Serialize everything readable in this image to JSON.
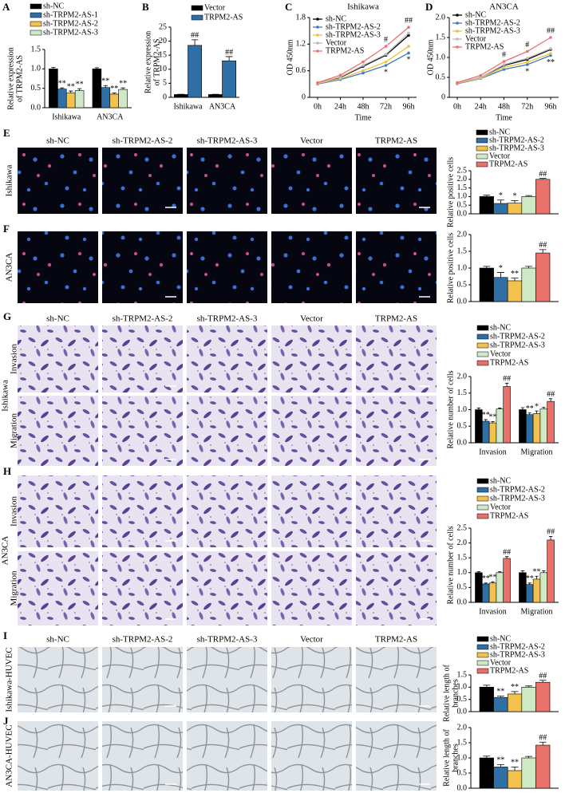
{
  "chart_data": [
    {
      "type": "bar",
      "panel": "A",
      "ylabel": [
        "Relative expression",
        "of TRPM2-AS"
      ],
      "categories": [
        "Ishikawa",
        "AN3CA"
      ],
      "ylim": [
        0,
        1.5
      ],
      "yticks": [
        {
          "value": 0,
          "label": "0.0"
        },
        0.5,
        {
          "value": 1,
          "label": "1.0"
        },
        1.5
      ],
      "legend": true,
      "series": [
        {
          "name": "sh-NC",
          "color": "#000000",
          "values": [
            1,
            1
          ],
          "errors": [
            0.04,
            0.03
          ]
        },
        {
          "name": "sh-TRPM2-AS-1",
          "color": "#2f6fa6",
          "values": [
            0.48,
            0.52
          ],
          "errors": [
            0.03,
            0.05
          ],
          "annotations": [
            "**",
            "**"
          ]
        },
        {
          "name": "sh-TRPM2-AS-2",
          "color": "#f2c14e",
          "values": [
            0.38,
            0.35
          ],
          "errors": [
            0.05,
            0.03
          ],
          "annotations": [
            "**",
            "**"
          ]
        },
        {
          "name": "sh-TRPM2-AS-3",
          "color": "#cfe8c6",
          "values": [
            0.44,
            0.47
          ],
          "errors": [
            0.05,
            0.04
          ],
          "annotations": [
            "**",
            "**"
          ]
        }
      ]
    },
    {
      "type": "bar",
      "panel": "B",
      "ylabel": [
        "Relative expression",
        "of TRPM2-AS"
      ],
      "categories": [
        "Ishikawa",
        "AN3CA"
      ],
      "ylim": [
        0,
        25
      ],
      "yticks": [
        0,
        5,
        10,
        15,
        20,
        25
      ],
      "legend": true,
      "series": [
        {
          "name": "Vector",
          "color": "#000000",
          "values": [
            1,
            1
          ],
          "errors": [
            0.1,
            0.1
          ]
        },
        {
          "name": "TRPM2-AS",
          "color": "#2f6fa6",
          "values": [
            18.5,
            13
          ],
          "errors": [
            2,
            1.5
          ],
          "annotations": [
            "##",
            "##"
          ]
        }
      ]
    },
    {
      "type": "line",
      "panel": "C",
      "title": "Ishikawa",
      "xlabel": "Time",
      "ylabel": [
        "OD 450nm"
      ],
      "categories": [
        "0h",
        "24h",
        "48h",
        "72h",
        "96h"
      ],
      "ylim": [
        0,
        1.8
      ],
      "yticks": [
        0,
        0.6,
        1.2,
        1.8
      ],
      "legend": true,
      "series": [
        {
          "name": "sh-NC",
          "color": "#000000",
          "values": [
            0.32,
            0.45,
            0.7,
            0.95,
            1.4
          ]
        },
        {
          "name": "sh-TRPM2-AS-2",
          "color": "#3a7cc0",
          "values": [
            0.3,
            0.4,
            0.55,
            0.72,
            1.0
          ],
          "annotations": [
            null,
            null,
            null,
            "*",
            "*"
          ],
          "annotation_side": "below"
        },
        {
          "name": "sh-TRPM2-AS-3",
          "color": "#f0c040",
          "values": [
            0.31,
            0.42,
            0.6,
            0.8,
            1.15
          ]
        },
        {
          "name": "Vector",
          "color": "#bbbbbb",
          "values": [
            0.32,
            0.46,
            0.72,
            0.97,
            1.45
          ]
        },
        {
          "name": "TRPM2-AS",
          "color": "#f07070",
          "values": [
            0.33,
            0.5,
            0.8,
            1.15,
            1.58
          ],
          "annotations": [
            null,
            null,
            null,
            "#",
            "##"
          ]
        }
      ]
    },
    {
      "type": "line",
      "panel": "D",
      "title": "AN3CA",
      "xlabel": "Time",
      "ylabel": [
        "OD 450nm"
      ],
      "categories": [
        "0h",
        "24h",
        "48h",
        "72h",
        "96h"
      ],
      "ylim": [
        0,
        2
      ],
      "yticks": [
        0,
        0.5,
        {
          "value": 1,
          "label": "1.0"
        },
        1.5,
        {
          "value": 2,
          "label": "2.0"
        }
      ],
      "legend": true,
      "series": [
        {
          "name": "sh-NC",
          "color": "#000000",
          "values": [
            0.35,
            0.5,
            0.8,
            0.95,
            1.2
          ]
        },
        {
          "name": "sh-TRPM2-AS-2",
          "color": "#3a7cc0",
          "values": [
            0.34,
            0.47,
            0.7,
            0.82,
            1.05
          ],
          "annotations": [
            null,
            null,
            null,
            "*",
            "**"
          ],
          "annotation_side": "below"
        },
        {
          "name": "sh-TRPM2-AS-3",
          "color": "#f0c040",
          "values": [
            0.35,
            0.48,
            0.75,
            0.88,
            1.1
          ]
        },
        {
          "name": "Vector",
          "color": "#bbbbbb",
          "values": [
            0.36,
            0.5,
            0.82,
            0.98,
            1.22
          ]
        },
        {
          "name": "TRPM2-AS",
          "color": "#f07070",
          "values": [
            0.37,
            0.55,
            0.9,
            1.15,
            1.5
          ],
          "annotations": [
            null,
            null,
            "#",
            "#",
            "##"
          ]
        }
      ]
    },
    {
      "type": "bar",
      "ylabel": [
        "Relative positive cells"
      ],
      "categories": [
        null
      ],
      "ylim": [
        0,
        2.5
      ],
      "yticks": [
        {
          "value": 0,
          "label": "0.0"
        },
        0.5,
        {
          "value": 1,
          "label": "1.0"
        },
        1.5,
        {
          "value": 2,
          "label": "2.0"
        },
        2.5
      ],
      "legend": true,
      "series": [
        {
          "name": "sh-NC",
          "color": "#000000",
          "values": [
            1
          ],
          "errors": [
            0.08
          ]
        },
        {
          "name": "sh-TRPM2-AS-2",
          "color": "#2f6fa6",
          "values": [
            0.6
          ],
          "errors": [
            0.2
          ],
          "annotations": [
            "*"
          ]
        },
        {
          "name": "sh-TRPM2-AS-3",
          "color": "#f2c14e",
          "values": [
            0.62
          ],
          "errors": [
            0.15
          ],
          "annotations": [
            "*"
          ]
        },
        {
          "name": "Vector",
          "color": "#cfe8c6",
          "values": [
            1
          ],
          "errors": [
            0.06
          ]
        },
        {
          "name": "TRPM2-AS",
          "color": "#e8716b",
          "values": [
            2
          ],
          "errors": [
            0.06
          ],
          "annotations": [
            "##"
          ]
        }
      ]
    },
    {
      "type": "bar",
      "ylabel": [
        "Relative positive cells"
      ],
      "categories": [
        null
      ],
      "ylim": [
        0,
        2
      ],
      "yticks": [
        {
          "value": 0,
          "label": "0.0"
        },
        0.5,
        {
          "value": 1,
          "label": "1.0"
        },
        1.5,
        {
          "value": 2,
          "label": "2.0"
        }
      ],
      "legend": false,
      "series": [
        {
          "color": "#000000",
          "values": [
            1
          ],
          "errors": [
            0.05
          ]
        },
        {
          "color": "#2f6fa6",
          "values": [
            0.72
          ],
          "errors": [
            0.15
          ],
          "annotations": [
            "*"
          ]
        },
        {
          "color": "#f2c14e",
          "values": [
            0.62
          ],
          "errors": [
            0.08
          ],
          "annotations": [
            "**"
          ]
        },
        {
          "color": "#cfe8c6",
          "values": [
            1
          ],
          "errors": [
            0.05
          ]
        },
        {
          "color": "#e8716b",
          "values": [
            1.45
          ],
          "errors": [
            0.1
          ],
          "annotations": [
            "##"
          ]
        }
      ]
    },
    {
      "type": "bar",
      "ylabel": [
        "Relative number of cells"
      ],
      "categories": [
        "Invasion",
        "Migration"
      ],
      "ylim": [
        0,
        2
      ],
      "yticks": [
        {
          "value": 0,
          "label": "0.0"
        },
        0.5,
        {
          "value": 1,
          "label": "1.0"
        },
        1.5,
        {
          "value": 2,
          "label": "2.0"
        }
      ],
      "legend": true,
      "series": [
        {
          "name": "sh-NC",
          "color": "#000000",
          "values": [
            1,
            1
          ],
          "errors": [
            0.05,
            0.06
          ]
        },
        {
          "name": "sh-TRPM2-AS-2",
          "color": "#2f6fa6",
          "values": [
            0.65,
            0.85
          ],
          "errors": [
            0.05,
            0.05
          ],
          "annotations": [
            "**",
            "**"
          ]
        },
        {
          "name": "sh-TRPM2-AS-3",
          "color": "#f2c14e",
          "values": [
            0.6,
            0.88
          ],
          "errors": [
            0.04,
            0.08
          ],
          "annotations": [
            "**",
            "*"
          ]
        },
        {
          "name": "Vector",
          "color": "#cfe8c6",
          "values": [
            1.02,
            1.02
          ],
          "errors": [
            0.03,
            0.05
          ]
        },
        {
          "name": "TRPM2-AS",
          "color": "#e8716b",
          "values": [
            1.7,
            1.25
          ],
          "errors": [
            0.1,
            0.08
          ],
          "annotations": [
            "##",
            "##"
          ]
        }
      ]
    },
    {
      "type": "bar",
      "ylabel": [
        "Relative number of cells"
      ],
      "categories": [
        "Invasion",
        "Migration"
      ],
      "ylim": [
        0,
        2.5
      ],
      "yticks": [
        {
          "value": 0,
          "label": "0.0"
        },
        0.5,
        {
          "value": 1,
          "label": "1.0"
        },
        1.5,
        {
          "value": 2,
          "label": "2.0"
        },
        2.5
      ],
      "legend": true,
      "series": [
        {
          "name": "sh-NC",
          "color": "#000000",
          "values": [
            1,
            1
          ],
          "errors": [
            0.03,
            0.06
          ]
        },
        {
          "name": "sh-TRPM2-AS-2",
          "color": "#2f6fa6",
          "values": [
            0.62,
            0.6
          ],
          "errors": [
            0.03,
            0.05
          ],
          "annotations": [
            "**",
            "**"
          ]
        },
        {
          "name": "sh-TRPM2-AS-3",
          "color": "#f2c14e",
          "values": [
            0.65,
            0.78
          ],
          "errors": [
            0.04,
            0.1
          ],
          "annotations": [
            "**",
            "**"
          ]
        },
        {
          "name": "Vector",
          "color": "#cfe8c6",
          "values": [
            1,
            1
          ],
          "errors": [
            0.03,
            0.06
          ]
        },
        {
          "name": "TRPM2-AS",
          "color": "#e8716b",
          "values": [
            1.48,
            2.1
          ],
          "errors": [
            0.06,
            0.12
          ],
          "annotations": [
            "##",
            "##"
          ]
        }
      ]
    },
    {
      "type": "bar",
      "ylabel": [
        "Relative length of",
        "branches"
      ],
      "categories": [
        null
      ],
      "ylim": [
        0,
        1.5
      ],
      "yticks": [
        {
          "value": 0,
          "label": "0.0"
        },
        0.5,
        {
          "value": 1,
          "label": "1.0"
        },
        1.5
      ],
      "legend": true,
      "series": [
        {
          "name": "sh-NC",
          "color": "#000000",
          "values": [
            1
          ],
          "errors": [
            0.08
          ]
        },
        {
          "name": "sh-TRPM2-AS-2",
          "color": "#2f6fa6",
          "values": [
            0.58
          ],
          "errors": [
            0.06
          ],
          "annotations": [
            "**"
          ]
        },
        {
          "name": "sh-TRPM2-AS-3",
          "color": "#f2c14e",
          "values": [
            0.72
          ],
          "errors": [
            0.1
          ],
          "annotations": [
            "**"
          ]
        },
        {
          "name": "Vector",
          "color": "#cfe8c6",
          "values": [
            1
          ],
          "errors": [
            0.05
          ]
        },
        {
          "name": "TRPM2-AS",
          "color": "#e8716b",
          "values": [
            1.2
          ],
          "errors": [
            0.08
          ],
          "annotations": [
            "##"
          ]
        }
      ]
    },
    {
      "type": "bar",
      "ylabel": [
        "Relative length of",
        "branches"
      ],
      "categories": [
        null
      ],
      "ylim": [
        0,
        2
      ],
      "yticks": [
        {
          "value": 0,
          "label": "0.0"
        },
        0.5,
        {
          "value": 1,
          "label": "1.0"
        },
        1.5,
        {
          "value": 2,
          "label": "2.0"
        }
      ],
      "legend": false,
      "series": [
        {
          "color": "#000000",
          "values": [
            1
          ],
          "errors": [
            0.06
          ]
        },
        {
          "color": "#2f6fa6",
          "values": [
            0.7
          ],
          "errors": [
            0.08
          ],
          "annotations": [
            "**"
          ]
        },
        {
          "color": "#f2c14e",
          "values": [
            0.58
          ],
          "errors": [
            0.12
          ],
          "annotations": [
            "**"
          ]
        },
        {
          "color": "#cfe8c6",
          "values": [
            1
          ],
          "errors": [
            0.05
          ]
        },
        {
          "color": "#e8716b",
          "values": [
            1.42
          ],
          "errors": [
            0.1
          ],
          "annotations": [
            "##"
          ]
        }
      ]
    }
  ],
  "image_panels": [
    {
      "panel": "E",
      "columns": [
        "sh-NC",
        "sh-TRPM2-AS-2",
        "sh-TRPM2-AS-3",
        "Vector",
        "TRPM2-AS"
      ],
      "rows": [
        "Ishikawa"
      ]
    },
    {
      "panel": "F",
      "rows": [
        "AN3CA"
      ]
    },
    {
      "panel": "G",
      "columns": [
        "sh-NC",
        "sh-TRPM2-AS-2",
        "sh-TRPM2-AS-3",
        "Vector",
        "TRPM2-AS"
      ],
      "group": "Ishikawa",
      "rows": [
        "Invasion",
        "Migration"
      ]
    },
    {
      "panel": "H",
      "group": "AN3CA",
      "rows": [
        "Invasion",
        "Migration"
      ]
    },
    {
      "panel": "I",
      "columns": [
        "sh-NC",
        "sh-TRPM2-AS-2",
        "sh-TRPM2-AS-3",
        "Vector",
        "TRPM2-AS"
      ],
      "rows": [
        "Ishikawa-HUVEC"
      ]
    },
    {
      "panel": "J",
      "rows": [
        "AN3CA-HUVEC"
      ]
    }
  ]
}
